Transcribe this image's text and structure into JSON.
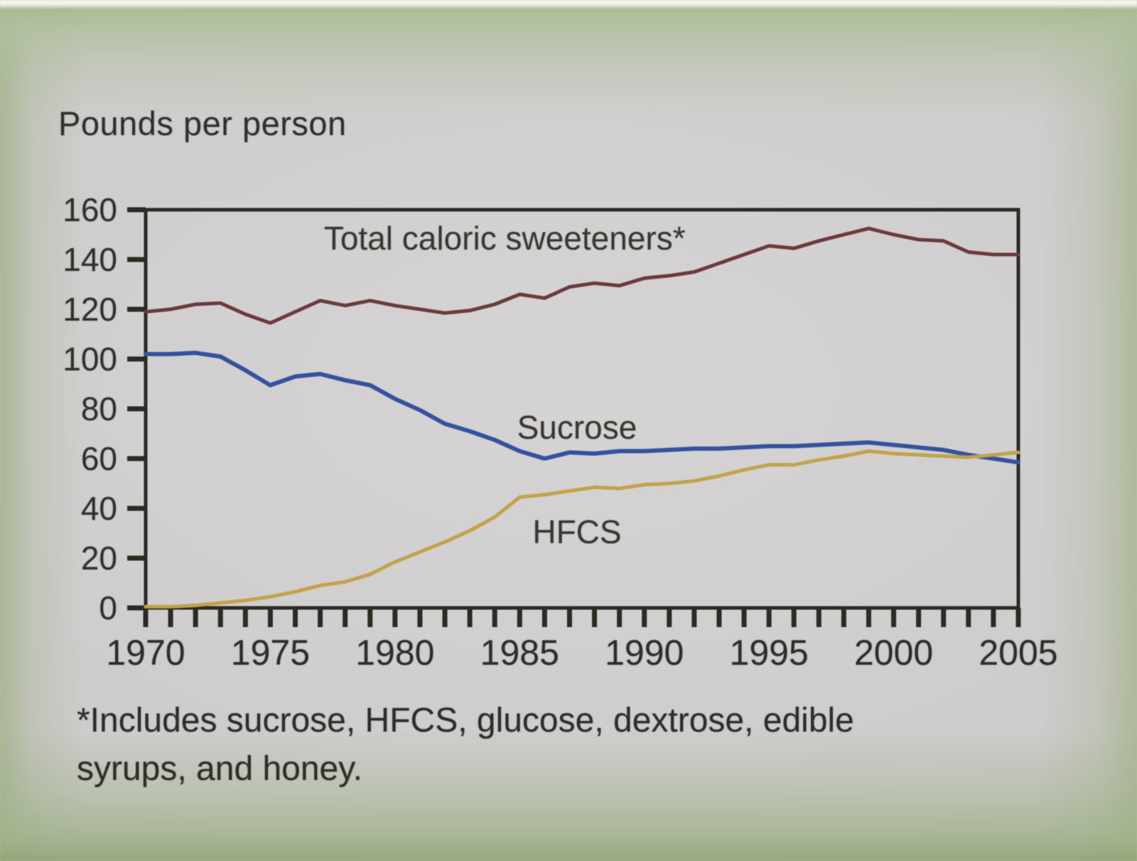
{
  "photo": {
    "paper_color": "#d3d1d2",
    "edge_green": "#a3b488",
    "ink_color": "#2e2d28"
  },
  "chart": {
    "units_label": "Pounds per person",
    "footnote_line1": "*Includes sucrose, HFCS, glucose, dextrose, edible",
    "footnote_line2": "syrups, and honey."
  },
  "chart_data": {
    "type": "line",
    "title": "Pounds per person",
    "ylabel": "Pounds per person",
    "xlabel": "",
    "grid": false,
    "legend_position": "inline-labels-on-plot",
    "x_range": [
      1970,
      2005
    ],
    "ylim": [
      0,
      160
    ],
    "yticks": [
      0,
      20,
      40,
      60,
      80,
      100,
      120,
      140,
      160
    ],
    "xtick_labels": [
      "1970",
      "1975",
      "1980",
      "1985",
      "1990",
      "1995",
      "2000",
      "2005"
    ],
    "x_minor_tick_interval_years": 1,
    "x": [
      1970,
      1971,
      1972,
      1973,
      1974,
      1975,
      1976,
      1977,
      1978,
      1979,
      1980,
      1981,
      1982,
      1983,
      1984,
      1985,
      1986,
      1987,
      1988,
      1989,
      1990,
      1991,
      1992,
      1993,
      1994,
      1995,
      1996,
      1997,
      1998,
      1999,
      2000,
      2001,
      2002,
      2003,
      2004,
      2005
    ],
    "series": [
      {
        "name": "Total caloric sweeteners*",
        "color": "#6b3a3d",
        "stroke_width": 5,
        "values": [
          119,
          120,
          122,
          122.5,
          118,
          114.5,
          119,
          123.5,
          121.5,
          123.5,
          121.5,
          120,
          118.5,
          119.5,
          122,
          126,
          124.5,
          129,
          130.5,
          129.5,
          132.5,
          133.5,
          135,
          138.5,
          142,
          145.5,
          144.5,
          147.5,
          150,
          152.5,
          150,
          148,
          147.5,
          143,
          142,
          142
        ]
      },
      {
        "name": "Sucrose",
        "color": "#34539e",
        "stroke_width": 6,
        "values": [
          102,
          102,
          102.5,
          101,
          95.5,
          89.5,
          93,
          94,
          91.5,
          89.5,
          84,
          79.5,
          74,
          71,
          67.5,
          63,
          60,
          62.5,
          62,
          63,
          63,
          63.5,
          64,
          64,
          64.5,
          65,
          65,
          65.5,
          66,
          66.5,
          65.5,
          64.5,
          63.5,
          61.5,
          60,
          58.5
        ]
      },
      {
        "name": "HFCS",
        "color": "#c2a24c",
        "stroke_width": 5,
        "values": [
          0.5,
          0.5,
          1,
          2,
          3,
          4.5,
          6.5,
          9,
          10.5,
          13.5,
          18.5,
          22.5,
          26.5,
          31,
          36.5,
          44.5,
          45.5,
          47,
          48.5,
          48,
          49.5,
          50,
          51,
          53,
          55.5,
          57.5,
          57.5,
          59.5,
          61,
          63,
          62,
          61.5,
          61,
          60.5,
          61.5,
          62.5
        ]
      }
    ],
    "series_label_positions": [
      {
        "x": 1984.4,
        "y": 148.5
      },
      {
        "x": 1987.3,
        "y": 72.5
      },
      {
        "x": 1987.3,
        "y": 30.5
      }
    ],
    "axis_color": "#2b2a23"
  }
}
